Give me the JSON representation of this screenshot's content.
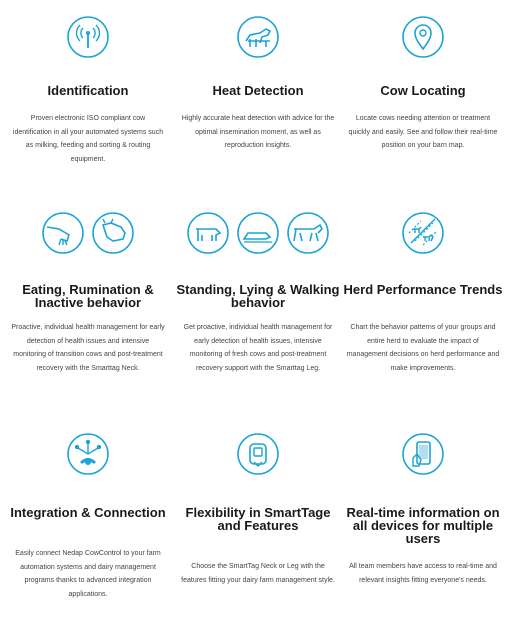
{
  "features": [
    {
      "title": "Identification",
      "description": "Proven electronic ISO compliant cow identification in all your automated systems such as milking, feeding and sorting & routing equipment.",
      "icons": [
        "rfid-signal-icon"
      ]
    },
    {
      "title": "Heat Detection",
      "description": "Highly accurate heat detection with advice for the optimal insemination moment, as well as reproduction insights.",
      "icons": [
        "cows-mounting-icon"
      ]
    },
    {
      "title": "Cow Locating",
      "description": "Locate cows needing attention or treatment quickly and easily. See and follow their real-time position on your barn map.",
      "icons": [
        "location-pin-icon"
      ]
    },
    {
      "title": "Eating, Rumination & Inactive behavior",
      "description": "Proactive, individual health management for early detection of health issues and intensive monitoring of transition cows and post-treatment recovery with the Smarttag Neck.",
      "icons": [
        "cow-eating-icon",
        "cow-ruminating-icon"
      ]
    },
    {
      "title": "Standing, Lying & Walking behavior",
      "description": "Get proactive, individual health management for early detection of health issues, intensive monitoring of fresh cows and post-treatment recovery support with the Smarttag Leg.",
      "icons": [
        "cow-standing-icon",
        "cow-lying-icon",
        "cow-walking-icon"
      ]
    },
    {
      "title": "Herd Performance Trends",
      "description": "Chart the behavior patterns of your groups and entire herd to evaluate the impact of management decisions on herd performance and make improvements.",
      "icons": [
        "herd-trend-icon"
      ]
    },
    {
      "title": "Integration & Connection",
      "description": "Easily connect Nedap CowControl to your farm automation systems and dairy management programs thanks to advanced integration applications.",
      "icons": [
        "integration-network-icon"
      ]
    },
    {
      "title": "Flexibility in SmartTage and Features",
      "description": "Choose the SmartTag Neck or Leg with the features fitting your dairy farm management style.",
      "icons": [
        "smarttag-device-icon"
      ]
    },
    {
      "title": "Real-time information on all devices for multiple users",
      "description": "All team members have access to real-time and relevant insights fitting everyone's needs.",
      "icons": [
        "smartphone-hand-icon"
      ]
    }
  ],
  "colors": {
    "accent": "#1aa3d6",
    "title": "#1a1a1a",
    "text": "#444444"
  }
}
